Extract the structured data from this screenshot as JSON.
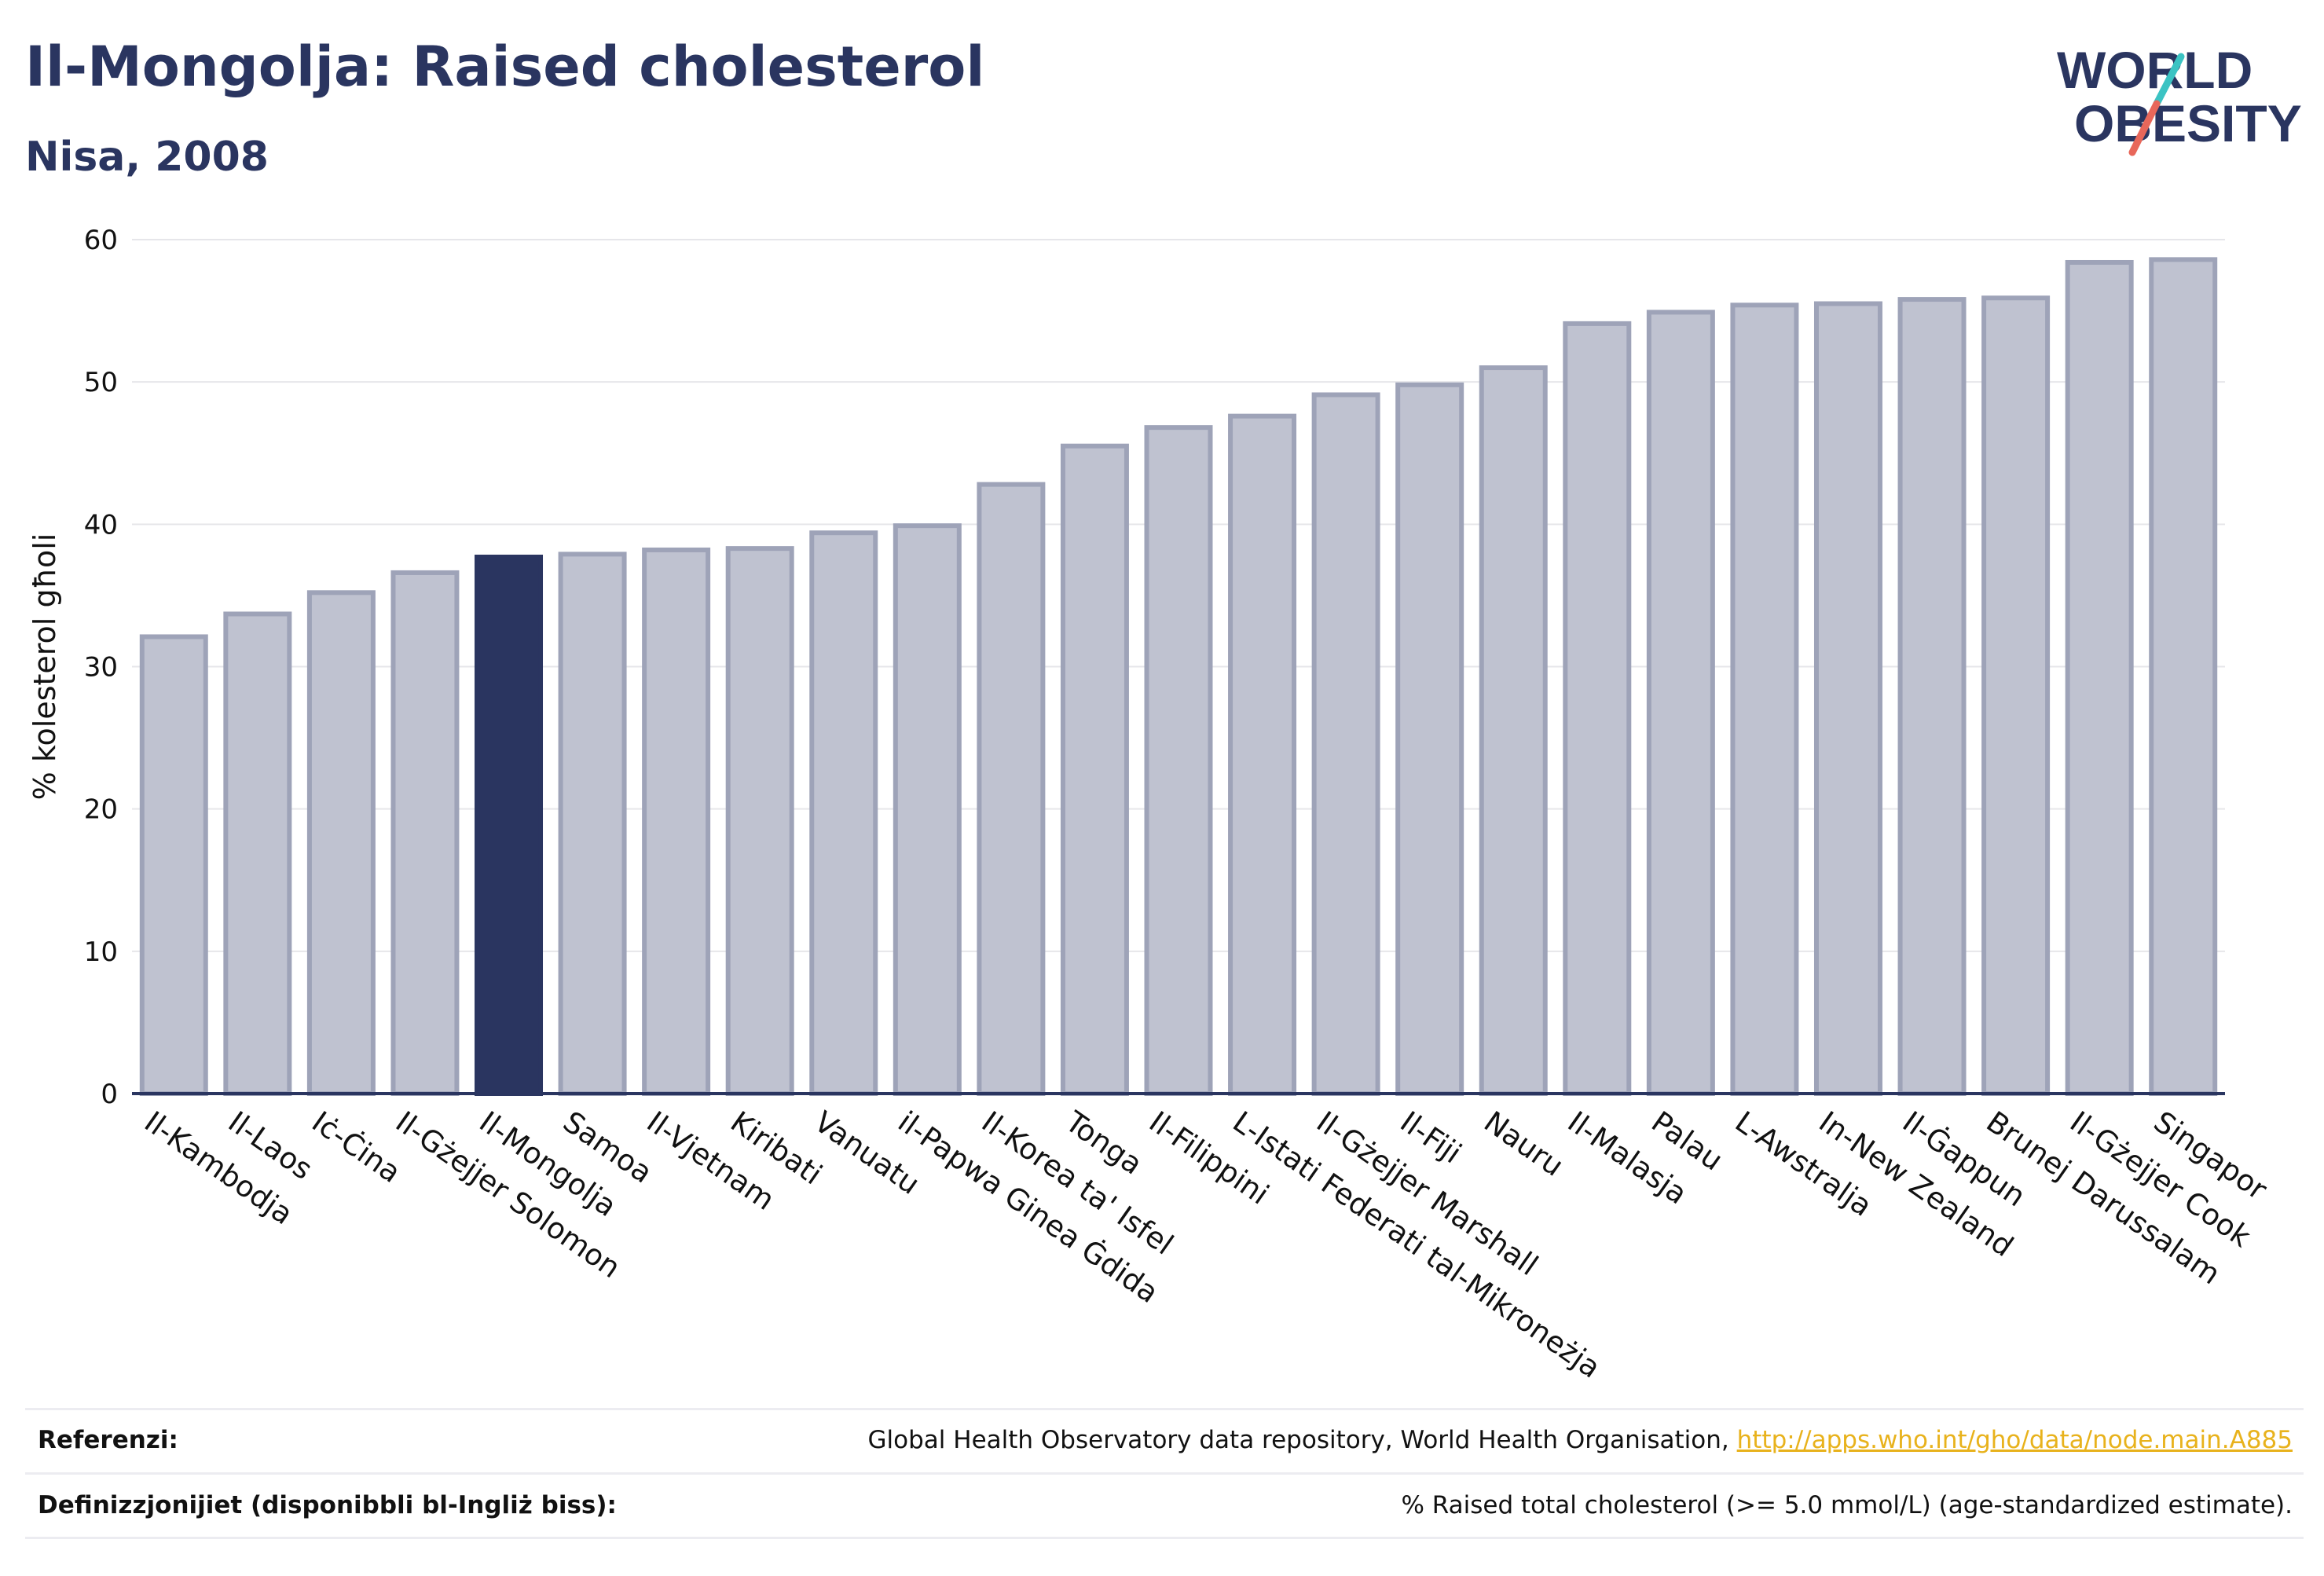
{
  "header": {
    "title": "Il-Mongolja: Raised cholesterol",
    "subtitle": "Nisa, 2008"
  },
  "logo": {
    "line1": "WORLD",
    "line2": "OBESITY",
    "slash_colors": [
      "#3bc3c3",
      "#e8675a"
    ]
  },
  "colors": {
    "bar_default": "#bfc2d0",
    "bar_border": "#9ea3b8",
    "bar_highlight": "#2a3560",
    "text": "#2a3560",
    "link": "#e8b21c"
  },
  "chart_data": {
    "type": "bar",
    "ylabel": "% kolesterol għoli",
    "ylim": [
      0,
      60
    ],
    "yticks": [
      0,
      10,
      20,
      30,
      40,
      50,
      60
    ],
    "grid": true,
    "highlight": "Il-Mongolja",
    "categories": [
      "Il-Kambodja",
      "Il-Laos",
      "Iċ-Ċina",
      "Il-Gżejjer Solomon",
      "Il-Mongolja",
      "Samoa",
      "Il-Vjetnam",
      "Kiribati",
      "Vanuatu",
      "il-Papwa Ginea Ġdida",
      "Il-Korea ta' Isfel",
      "Tonga",
      "Il-Filippini",
      "L-Istati Federati tal-Mikroneżja",
      "Il-Gżejjer Marshall",
      "Il-Fiji",
      "Nauru",
      "Il-Malasja",
      "Palau",
      "L-Awstralja",
      "In-New Zealand",
      "Il-Ġappun",
      "Brunej Darussalam",
      "Il-Gżejjer Cook",
      "Singapor"
    ],
    "values": [
      32.1,
      33.7,
      35.2,
      36.6,
      37.7,
      37.9,
      38.2,
      38.3,
      39.4,
      39.9,
      42.8,
      45.5,
      46.8,
      47.6,
      49.1,
      49.8,
      51.0,
      54.1,
      54.9,
      55.4,
      55.5,
      55.8,
      55.9,
      58.4,
      58.6
    ]
  },
  "footer": {
    "references_label": "Referenzi:",
    "references_text": "Global Health Observatory data repository, World Health Organisation, ",
    "references_link": "http://apps.who.int/gho/data/node.main.A885",
    "definitions_label": "Definizzjonijiet (disponibbli bl-Ingliż biss):",
    "definitions_text": "% Raised total cholesterol (>= 5.0 mmol/L) (age-standardized estimate)."
  }
}
